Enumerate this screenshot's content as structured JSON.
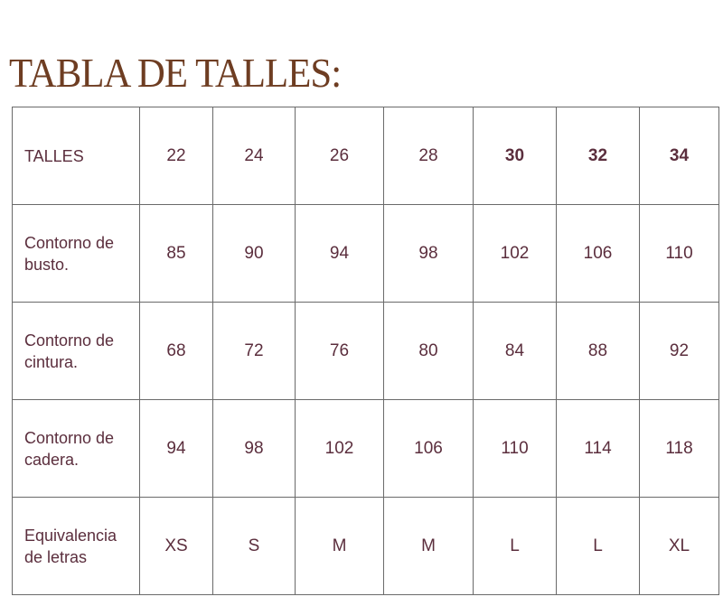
{
  "title": "TABLA DE TALLES:",
  "rows": [
    {
      "label": "TALLES",
      "values": [
        "22",
        "24",
        "26",
        "28",
        "30",
        "32",
        "34"
      ]
    },
    {
      "label": "Contorno de busto.",
      "values": [
        "85",
        "90",
        "94",
        "98",
        "102",
        "106",
        "110"
      ]
    },
    {
      "label": "Contorno de cintura.",
      "values": [
        "68",
        "72",
        "76",
        "80",
        "84",
        "88",
        "92"
      ]
    },
    {
      "label": "Contorno de cadera.",
      "values": [
        "94",
        "98",
        "102",
        "106",
        "110",
        "114",
        "118"
      ]
    },
    {
      "label": "Equivalencia de letras",
      "values": [
        "XS",
        "S",
        "M",
        "M",
        "L",
        "L",
        "XL"
      ]
    }
  ],
  "colors": {
    "title": "#6e3d22",
    "text": "#5b2e3d",
    "border": "#6a6a6a"
  }
}
